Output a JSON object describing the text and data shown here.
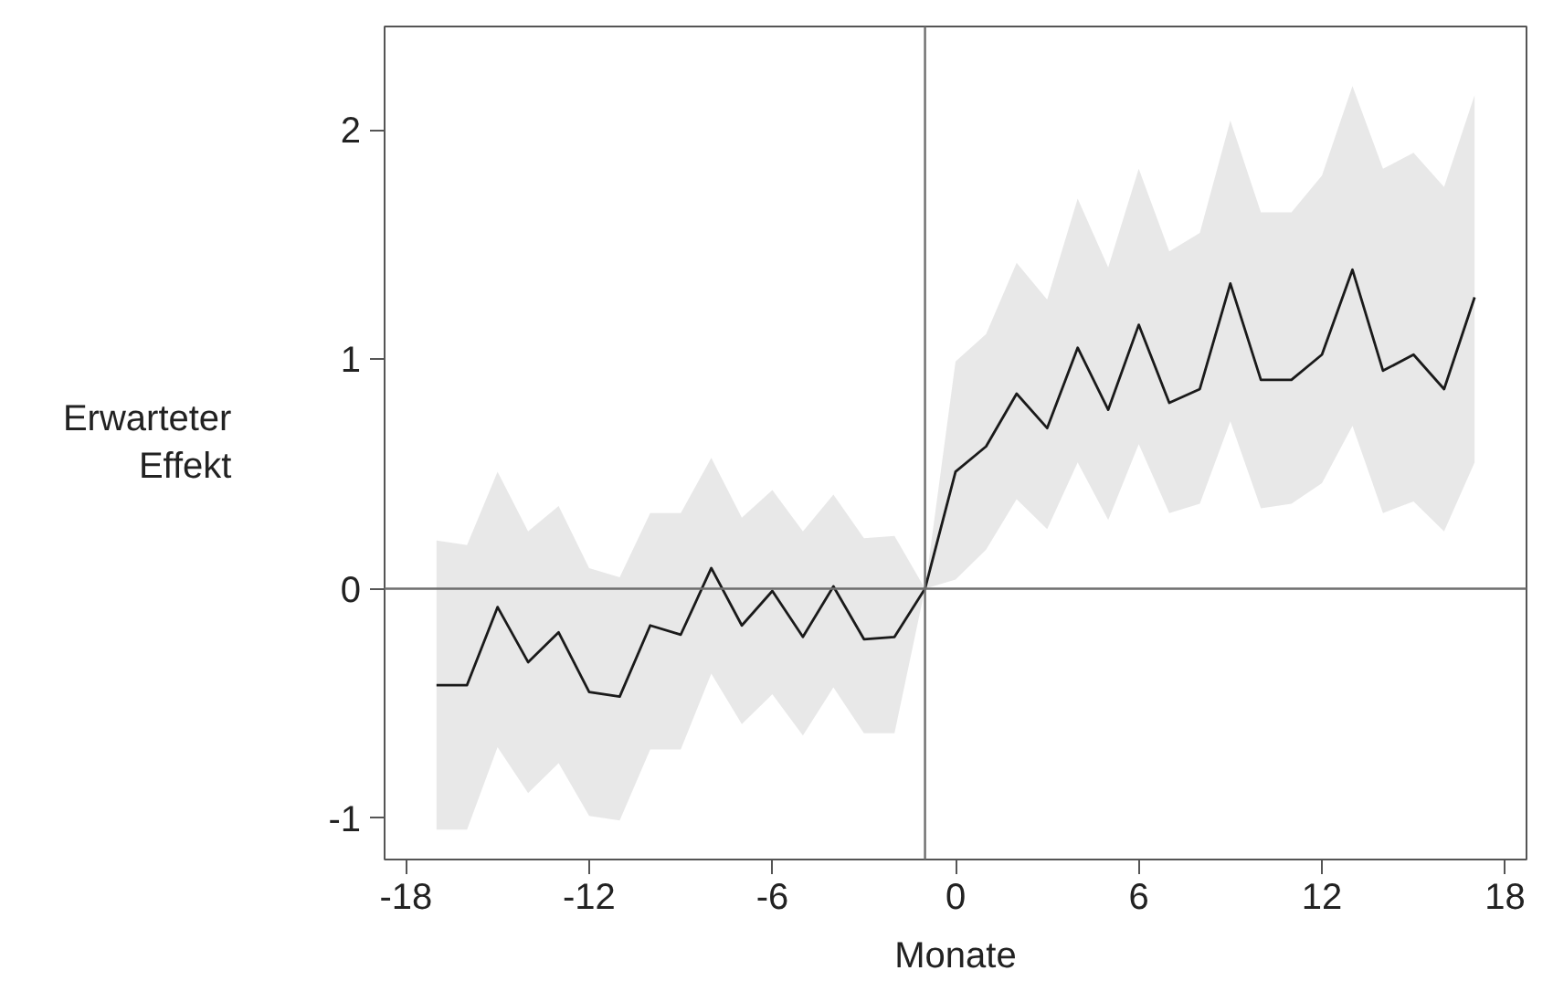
{
  "chart_data": {
    "type": "line",
    "xlabel": "Monate",
    "ylabel": "Erwarteter\nEffekt",
    "x": [
      -17,
      -16,
      -15,
      -14,
      -13,
      -12,
      -11,
      -10,
      -9,
      -8,
      -7,
      -6,
      -5,
      -4,
      -3,
      -2,
      -1,
      0,
      1,
      2,
      3,
      4,
      5,
      6,
      7,
      8,
      9,
      10,
      11,
      12,
      13,
      14,
      15,
      16,
      17
    ],
    "series": [
      {
        "color": "#1a1a1a",
        "values": [
          -0.42,
          -0.42,
          -0.08,
          -0.32,
          -0.19,
          -0.45,
          -0.47,
          -0.16,
          -0.2,
          0.09,
          -0.16,
          -0.01,
          -0.21,
          0.01,
          -0.22,
          -0.21,
          0,
          0.51,
          0.62,
          0.85,
          0.7,
          1.05,
          0.78,
          1.15,
          0.81,
          0.87,
          1.33,
          0.91,
          0.91,
          1.02,
          1.39,
          0.95,
          1.02,
          0.87,
          1.27
        ],
        "upper": [
          0.21,
          0.19,
          0.51,
          0.25,
          0.36,
          0.09,
          0.05,
          0.33,
          0.33,
          0.57,
          0.31,
          0.43,
          0.25,
          0.41,
          0.22,
          0.23,
          0,
          0.99,
          1.11,
          1.42,
          1.26,
          1.7,
          1.4,
          1.83,
          1.47,
          1.55,
          2.04,
          1.64,
          1.64,
          1.8,
          2.19,
          1.83,
          1.9,
          1.75,
          2.15
        ],
        "lower": [
          -1.05,
          -1.05,
          -0.69,
          -0.89,
          -0.76,
          -0.99,
          -1.01,
          -0.7,
          -0.7,
          -0.37,
          -0.59,
          -0.46,
          -0.64,
          -0.43,
          -0.63,
          -0.63,
          0,
          0.04,
          0.17,
          0.39,
          0.26,
          0.55,
          0.3,
          0.63,
          0.33,
          0.37,
          0.73,
          0.35,
          0.37,
          0.46,
          0.71,
          0.33,
          0.38,
          0.25,
          0.55
        ]
      }
    ],
    "xlim": [
      -18.7,
      18.7
    ],
    "ylim": [
      -1.18,
      2.45
    ],
    "xticks": [
      -18,
      -12,
      -6,
      0,
      6,
      12,
      18
    ],
    "yticks": [
      -1,
      0,
      1,
      2
    ],
    "ref_lines": [
      {
        "axis": "x",
        "value": -1,
        "color": "#6e6e6e"
      },
      {
        "axis": "y",
        "value": 0,
        "color": "#6e6e6e"
      }
    ],
    "grid": false,
    "marker": "none",
    "line_style": "solid"
  }
}
